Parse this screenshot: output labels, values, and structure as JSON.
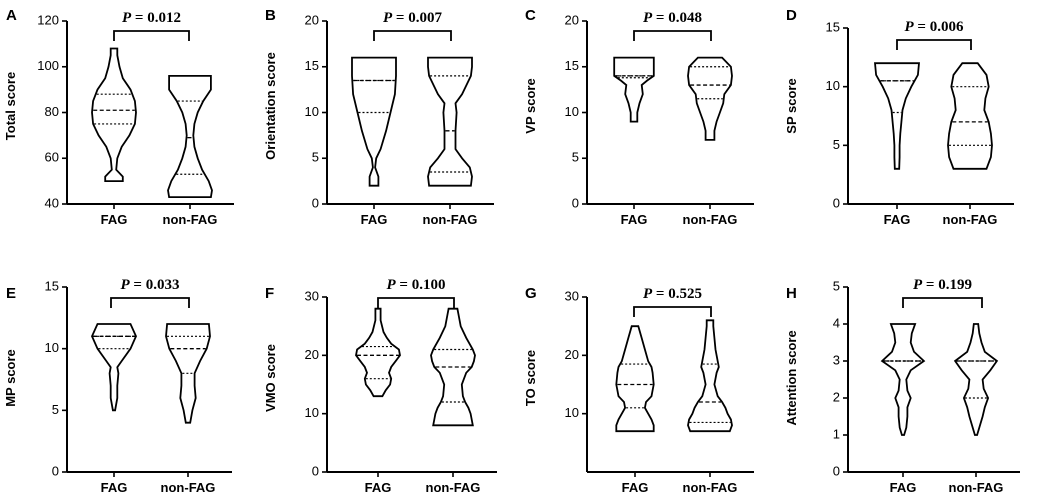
{
  "chart_data": [
    {
      "panel": "A",
      "type": "violin",
      "ylabel": "Total score",
      "ylim": [
        40,
        120
      ],
      "yticks": [
        40,
        60,
        80,
        100,
        120
      ],
      "categories": [
        "FAG",
        "non-FAG"
      ],
      "p_prefix": "P",
      "p_text": " = 0.012",
      "groups": [
        {
          "name": "FAG",
          "min": 50,
          "max": 108,
          "q1": 75,
          "median": 81,
          "q3": 88,
          "shape": [
            [
              50,
              0.4
            ],
            [
              52,
              0.4
            ],
            [
              55,
              0.1
            ],
            [
              60,
              0.15
            ],
            [
              65,
              0.35
            ],
            [
              70,
              0.7
            ],
            [
              75,
              0.95
            ],
            [
              80,
              1.0
            ],
            [
              85,
              0.95
            ],
            [
              90,
              0.75
            ],
            [
              95,
              0.4
            ],
            [
              100,
              0.25
            ],
            [
              105,
              0.15
            ],
            [
              108,
              0.15
            ]
          ]
        },
        {
          "name": "non-FAG",
          "min": 43,
          "max": 96,
          "q1": 53,
          "median": 69,
          "q3": 85,
          "shape": [
            [
              43,
              0.95
            ],
            [
              46,
              1.0
            ],
            [
              50,
              0.85
            ],
            [
              55,
              0.55
            ],
            [
              60,
              0.35
            ],
            [
              65,
              0.2
            ],
            [
              70,
              0.15
            ],
            [
              75,
              0.2
            ],
            [
              80,
              0.35
            ],
            [
              85,
              0.6
            ],
            [
              90,
              0.95
            ],
            [
              96,
              0.95
            ]
          ]
        }
      ]
    },
    {
      "panel": "B",
      "type": "violin",
      "ylabel": "Orientation score",
      "ylim": [
        0,
        20
      ],
      "yticks": [
        0,
        5,
        10,
        15,
        20
      ],
      "categories": [
        "FAG",
        "non-FAG"
      ],
      "p_prefix": "P",
      "p_text": " = 0.007",
      "groups": [
        {
          "name": "FAG",
          "min": 2,
          "max": 16,
          "q1": 10,
          "median": 13.5,
          "q3": 13.5,
          "shape": [
            [
              2,
              0.2
            ],
            [
              3,
              0.2
            ],
            [
              4,
              0.05
            ],
            [
              5,
              0.1
            ],
            [
              6,
              0.3
            ],
            [
              8,
              0.55
            ],
            [
              10,
              0.75
            ],
            [
              12,
              0.95
            ],
            [
              14,
              1.0
            ],
            [
              15,
              1.0
            ],
            [
              16,
              1.0
            ]
          ]
        },
        {
          "name": "non-FAG",
          "min": 2,
          "max": 16,
          "q1": 3.5,
          "median": 8,
          "q3": 14,
          "shape": [
            [
              2,
              0.95
            ],
            [
              3,
              1.0
            ],
            [
              4,
              0.9
            ],
            [
              5,
              0.55
            ],
            [
              6,
              0.25
            ],
            [
              8,
              0.25
            ],
            [
              10,
              0.3
            ],
            [
              11,
              0.25
            ],
            [
              12,
              0.55
            ],
            [
              14,
              0.95
            ],
            [
              15,
              1.0
            ],
            [
              16,
              1.0
            ]
          ]
        }
      ]
    },
    {
      "panel": "C",
      "type": "violin",
      "ylabel": "VP score",
      "ylim": [
        0,
        20
      ],
      "yticks": [
        0,
        5,
        10,
        15,
        20
      ],
      "categories": [
        "FAG",
        "non-FAG"
      ],
      "p_prefix": "P",
      "p_text": " = 0.048",
      "groups": [
        {
          "name": "FAG",
          "min": 9,
          "max": 16,
          "q1": 13.8,
          "median": 14,
          "q3": 14,
          "shape": [
            [
              9,
              0.15
            ],
            [
              10,
              0.15
            ],
            [
              11,
              0.25
            ],
            [
              12,
              0.4
            ],
            [
              13,
              0.35
            ],
            [
              13.5,
              0.6
            ],
            [
              14,
              0.9
            ],
            [
              15,
              0.9
            ],
            [
              16,
              0.9
            ]
          ]
        },
        {
          "name": "non-FAG",
          "min": 7,
          "max": 16,
          "q1": 11.5,
          "median": 13,
          "q3": 15,
          "shape": [
            [
              7,
              0.2
            ],
            [
              8,
              0.2
            ],
            [
              9,
              0.3
            ],
            [
              10,
              0.45
            ],
            [
              11,
              0.6
            ],
            [
              12,
              0.65
            ],
            [
              13,
              0.95
            ],
            [
              14,
              1.0
            ],
            [
              15,
              0.95
            ],
            [
              16,
              0.55
            ]
          ]
        }
      ]
    },
    {
      "panel": "D",
      "type": "violin",
      "ylabel": "SP score",
      "ylim": [
        0,
        15
      ],
      "yticks": [
        0,
        5,
        10,
        15
      ],
      "categories": [
        "FAG",
        "non-FAG"
      ],
      "p_prefix": "P",
      "p_text": " = 0.006",
      "groups": [
        {
          "name": "FAG",
          "min": 3,
          "max": 12,
          "q1": 7.8,
          "median": 10.5,
          "q3": 10.5,
          "shape": [
            [
              3,
              0.1
            ],
            [
              4,
              0.12
            ],
            [
              5,
              0.12
            ],
            [
              6,
              0.15
            ],
            [
              7,
              0.2
            ],
            [
              8,
              0.25
            ],
            [
              9,
              0.4
            ],
            [
              10,
              0.65
            ],
            [
              11,
              0.95
            ],
            [
              12,
              1.0
            ]
          ]
        },
        {
          "name": "non-FAG",
          "min": 3,
          "max": 12,
          "q1": 5,
          "median": 7,
          "q3": 10,
          "shape": [
            [
              3,
              0.75
            ],
            [
              4,
              0.95
            ],
            [
              5,
              1.0
            ],
            [
              6,
              0.95
            ],
            [
              7,
              0.85
            ],
            [
              8,
              0.65
            ],
            [
              9,
              0.7
            ],
            [
              10,
              0.85
            ],
            [
              11,
              0.75
            ],
            [
              12,
              0.35
            ]
          ]
        }
      ]
    },
    {
      "panel": "E",
      "type": "violin",
      "ylabel": "MP score",
      "ylim": [
        0,
        15
      ],
      "yticks": [
        0,
        5,
        10,
        15
      ],
      "categories": [
        "FAG",
        "non-FAG"
      ],
      "p_prefix": "P",
      "p_text": " = 0.033",
      "groups": [
        {
          "name": "FAG",
          "min": 5,
          "max": 12,
          "q1": 10,
          "median": 11,
          "q3": 11,
          "shape": [
            [
              5,
              0.05
            ],
            [
              6,
              0.15
            ],
            [
              7,
              0.15
            ],
            [
              8,
              0.2
            ],
            [
              8.5,
              0.15
            ],
            [
              9,
              0.35
            ],
            [
              10,
              0.75
            ],
            [
              11,
              1.0
            ],
            [
              12,
              0.75
            ]
          ]
        },
        {
          "name": "non-FAG",
          "min": 4,
          "max": 12,
          "q1": 8,
          "median": 10,
          "q3": 11,
          "shape": [
            [
              4,
              0.1
            ],
            [
              5,
              0.2
            ],
            [
              6,
              0.35
            ],
            [
              7,
              0.3
            ],
            [
              8,
              0.3
            ],
            [
              9,
              0.55
            ],
            [
              10,
              0.85
            ],
            [
              11,
              1.0
            ],
            [
              12,
              0.95
            ]
          ]
        }
      ]
    },
    {
      "panel": "F",
      "type": "violin",
      "ylabel": "VMO score",
      "ylim": [
        0,
        30
      ],
      "yticks": [
        0,
        10,
        20,
        30
      ],
      "categories": [
        "FAG",
        "non-FAG"
      ],
      "p_prefix": "P",
      "p_text": " = 0.100",
      "groups": [
        {
          "name": "FAG",
          "min": 13,
          "max": 28,
          "q1": 16,
          "median": 20,
          "q3": 21.5,
          "shape": [
            [
              13,
              0.2
            ],
            [
              14,
              0.35
            ],
            [
              15,
              0.55
            ],
            [
              16,
              0.6
            ],
            [
              17,
              0.5
            ],
            [
              18,
              0.6
            ],
            [
              19,
              0.8
            ],
            [
              20,
              1.0
            ],
            [
              21,
              0.95
            ],
            [
              22,
              0.6
            ],
            [
              23,
              0.4
            ],
            [
              24,
              0.25
            ],
            [
              26,
              0.12
            ],
            [
              28,
              0.12
            ]
          ]
        },
        {
          "name": "non-FAG",
          "min": 8,
          "max": 28,
          "q1": 12,
          "median": 18,
          "q3": 21,
          "shape": [
            [
              8,
              0.9
            ],
            [
              9,
              0.85
            ],
            [
              10,
              0.8
            ],
            [
              11,
              0.7
            ],
            [
              12,
              0.55
            ],
            [
              13,
              0.45
            ],
            [
              15,
              0.4
            ],
            [
              17,
              0.6
            ],
            [
              18,
              0.85
            ],
            [
              19,
              0.95
            ],
            [
              20,
              1.0
            ],
            [
              21,
              0.9
            ],
            [
              23,
              0.6
            ],
            [
              25,
              0.35
            ],
            [
              27,
              0.25
            ],
            [
              28,
              0.2
            ]
          ]
        }
      ]
    },
    {
      "panel": "G",
      "type": "violin",
      "ylabel": "TO score",
      "ylim": [
        0,
        30
      ],
      "yticks": [
        10,
        20,
        30
      ],
      "categories": [
        "FAG",
        "non-FAG"
      ],
      "p_prefix": "P",
      "p_text": " = 0.525",
      "groups": [
        {
          "name": "FAG",
          "min": 7,
          "max": 25,
          "q1": 11,
          "median": 15,
          "q3": 18.5,
          "shape": [
            [
              7,
              0.85
            ],
            [
              8,
              0.85
            ],
            [
              9,
              0.75
            ],
            [
              10,
              0.6
            ],
            [
              11,
              0.45
            ],
            [
              12,
              0.5
            ],
            [
              13,
              0.75
            ],
            [
              15,
              0.85
            ],
            [
              17,
              0.8
            ],
            [
              18,
              0.75
            ],
            [
              19,
              0.6
            ],
            [
              21,
              0.45
            ],
            [
              23,
              0.3
            ],
            [
              25,
              0.15
            ]
          ]
        },
        {
          "name": "non-FAG",
          "min": 7,
          "max": 26,
          "q1": 8.5,
          "median": 12,
          "q3": 18.5,
          "shape": [
            [
              7,
              0.9
            ],
            [
              8,
              1.0
            ],
            [
              9,
              0.95
            ],
            [
              10,
              0.8
            ],
            [
              11,
              0.7
            ],
            [
              12,
              0.55
            ],
            [
              13,
              0.35
            ],
            [
              15,
              0.2
            ],
            [
              17,
              0.3
            ],
            [
              18,
              0.4
            ],
            [
              19,
              0.35
            ],
            [
              21,
              0.25
            ],
            [
              23,
              0.2
            ],
            [
              25,
              0.15
            ],
            [
              26,
              0.15
            ]
          ]
        }
      ]
    },
    {
      "panel": "H",
      "type": "violin",
      "ylabel": "Attention score",
      "ylim": [
        0,
        5
      ],
      "yticks": [
        0,
        1,
        2,
        3,
        4,
        5
      ],
      "categories": [
        "FAG",
        "non-FAG"
      ],
      "p_prefix": "P",
      "p_text": " = 0.199",
      "groups": [
        {
          "name": "FAG",
          "min": 1,
          "max": 4,
          "q1": 3,
          "median": 3,
          "q3": 3,
          "shape": [
            [
              1,
              0.05
            ],
            [
              1.2,
              0.15
            ],
            [
              1.5,
              0.2
            ],
            [
              1.75,
              0.2
            ],
            [
              2,
              0.35
            ],
            [
              2.2,
              0.2
            ],
            [
              2.5,
              0.15
            ],
            [
              2.75,
              0.35
            ],
            [
              3,
              0.95
            ],
            [
              3.25,
              0.5
            ],
            [
              3.5,
              0.35
            ],
            [
              3.75,
              0.4
            ],
            [
              4,
              0.55
            ]
          ]
        },
        {
          "name": "non-FAG",
          "min": 1,
          "max": 4,
          "q1": 2,
          "median": 3,
          "q3": 3,
          "shape": [
            [
              1,
              0.05
            ],
            [
              1.2,
              0.15
            ],
            [
              1.5,
              0.3
            ],
            [
              1.75,
              0.4
            ],
            [
              2,
              0.55
            ],
            [
              2.25,
              0.35
            ],
            [
              2.5,
              0.3
            ],
            [
              2.75,
              0.65
            ],
            [
              3,
              0.95
            ],
            [
              3.25,
              0.4
            ],
            [
              3.5,
              0.25
            ],
            [
              3.75,
              0.15
            ],
            [
              4,
              0.1
            ]
          ]
        }
      ]
    }
  ]
}
